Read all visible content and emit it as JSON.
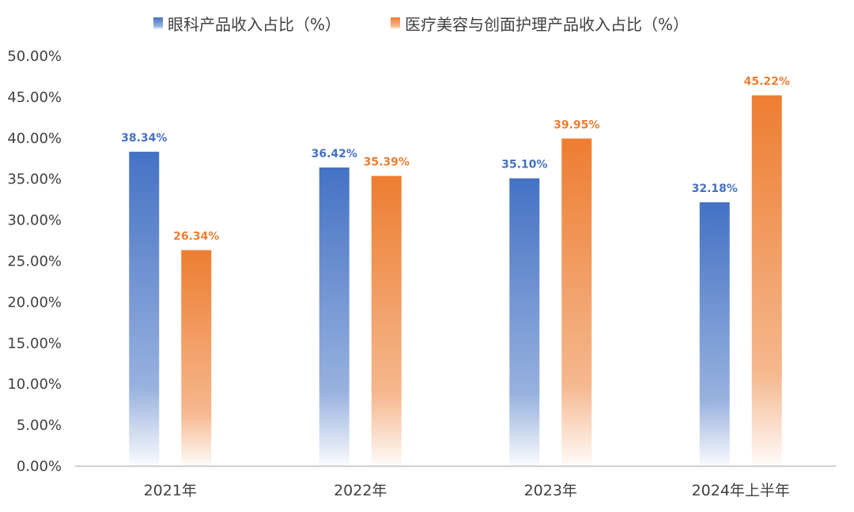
{
  "chart_data": {
    "type": "bar",
    "categories": [
      "2021年",
      "2022年",
      "2023年",
      "2024年上半年"
    ],
    "series": [
      {
        "name": "眼科产品收入占比（%）",
        "values": [
          38.34,
          36.42,
          35.1,
          32.18
        ],
        "labels": [
          "38.34%",
          "36.42%",
          "35.10%",
          "32.18%"
        ],
        "color": "#4472C4"
      },
      {
        "name": "医疗美容与创面护理产品收入占比（%）",
        "values": [
          26.34,
          35.39,
          39.95,
          45.22
        ],
        "labels": [
          "26.34%",
          "35.39%",
          "39.95%",
          "45.22%"
        ],
        "color": "#ED7D31"
      }
    ],
    "yticks": [
      "0.00%",
      "5.00%",
      "10.00%",
      "15.00%",
      "20.00%",
      "25.00%",
      "30.00%",
      "35.00%",
      "40.00%",
      "45.00%",
      "50.00%"
    ],
    "ylim": [
      0,
      50
    ],
    "legend_position": "top",
    "grid": false
  }
}
